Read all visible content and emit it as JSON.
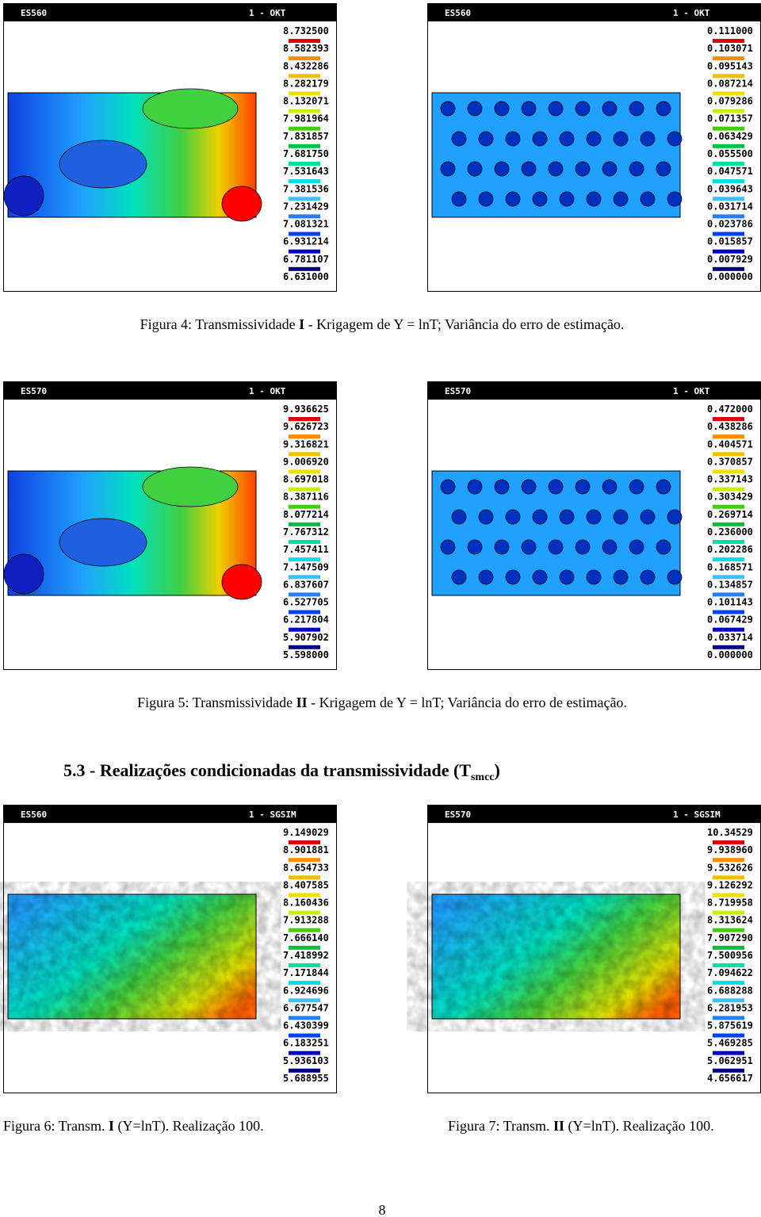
{
  "panels": [
    {
      "id": "ES560",
      "method": "1 - OKT",
      "legend": [
        "8.732500",
        "8.582393",
        "8.432286",
        "8.282179",
        "8.132071",
        "7.981964",
        "7.831857",
        "7.681750",
        "7.531643",
        "7.381536",
        "7.231429",
        "7.081321",
        "6.931214",
        "6.781107",
        "6.631000"
      ]
    },
    {
      "id": "ES560",
      "method": "1 - OKT",
      "legend": [
        "0.111000",
        "0.103071",
        "0.095143",
        "0.087214",
        "0.079286",
        "0.071357",
        "0.063429",
        "0.055500",
        "0.047571",
        "0.039643",
        "0.031714",
        "0.023786",
        "0.015857",
        "0.007929",
        "0.000000"
      ]
    },
    {
      "id": "ES570",
      "method": "1 - OKT",
      "legend": [
        "9.936625",
        "9.626723",
        "9.316821",
        "9.006920",
        "8.697018",
        "8.387116",
        "8.077214",
        "7.767312",
        "7.457411",
        "7.147509",
        "6.837607",
        "6.527705",
        "6.217804",
        "5.907902",
        "5.598000"
      ]
    },
    {
      "id": "ES570",
      "method": "1 - OKT",
      "legend": [
        "0.472000",
        "0.438286",
        "0.404571",
        "0.370857",
        "0.337143",
        "0.303429",
        "0.269714",
        "0.236000",
        "0.202286",
        "0.168571",
        "0.134857",
        "0.101143",
        "0.067429",
        "0.033714",
        "0.000000"
      ]
    },
    {
      "id": "ES560",
      "method": "1 - SGSIM",
      "legend": [
        "9.149029",
        "8.901881",
        "8.654733",
        "8.407585",
        "8.160436",
        "7.913288",
        "7.666140",
        "7.418992",
        "7.171844",
        "6.924696",
        "6.677547",
        "6.430399",
        "6.183251",
        "5.936103",
        "5.688955"
      ]
    },
    {
      "id": "ES570",
      "method": "1 - SGSIM",
      "legend": [
        "10.34529",
        "9.938960",
        "9.532626",
        "9.126292",
        "8.719958",
        "8.313624",
        "7.907290",
        "7.500956",
        "7.094622",
        "6.688288",
        "6.281953",
        "5.875619",
        "5.469285",
        "5.062951",
        "4.656617"
      ]
    }
  ],
  "captions": [
    {
      "before": "Figura 4: Transmissividade ",
      "bold": "I",
      "after": " - Krigagem de Y = lnT; Variância do erro de estimação."
    },
    {
      "before": "Figura 5: Transmissividade ",
      "bold": "II",
      "after": " - Krigagem de Y = lnT; Variância do erro de estimação."
    },
    {
      "before": "Figura 6: Transm. ",
      "bold": "I",
      "after": " (Y=lnT). Realização 100."
    },
    {
      "before": "Figura 7: Transm. ",
      "bold": "II",
      "after": " (Y=lnT). Realização 100."
    }
  ],
  "section_heading": {
    "text": "5.3 - Realizações condicionadas da transmissividade (T",
    "subscript": "smcc",
    "close": ")"
  },
  "page_number": "8"
}
